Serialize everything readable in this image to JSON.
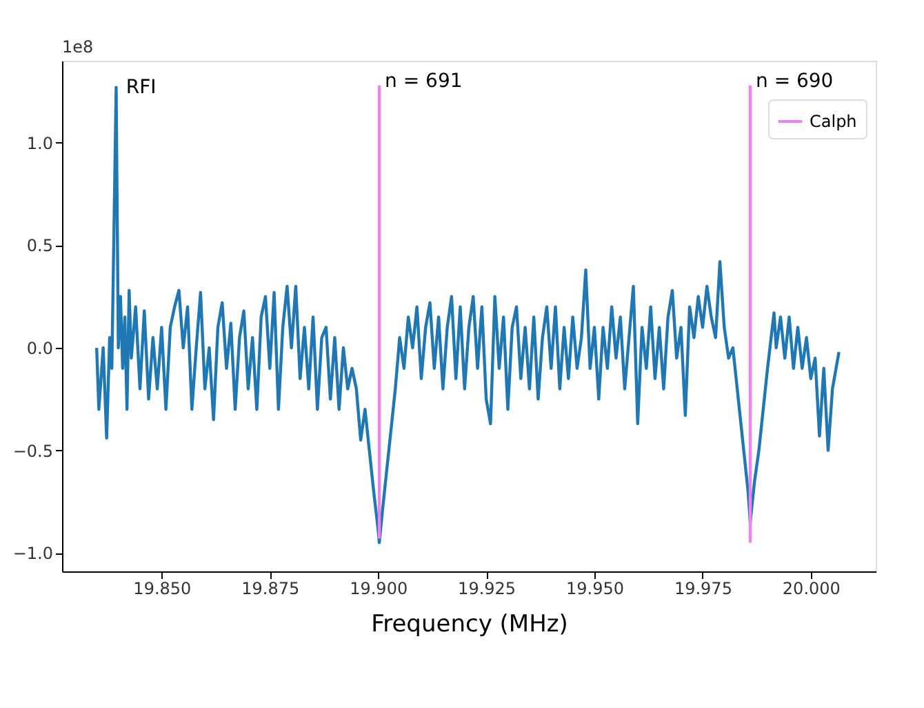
{
  "chart_data": {
    "type": "line",
    "xlabel": "Frequency (MHz)",
    "xlim": [
      19.827,
      20.015
    ],
    "xticks": [
      {
        "value": 19.85,
        "label": "19.850"
      },
      {
        "value": 19.875,
        "label": "19.875"
      },
      {
        "value": 19.9,
        "label": "19.900"
      },
      {
        "value": 19.925,
        "label": "19.925"
      },
      {
        "value": 19.95,
        "label": "19.950"
      },
      {
        "value": 19.975,
        "label": "19.975"
      },
      {
        "value": 20.0,
        "label": "20.000"
      }
    ],
    "ylim": [
      -1.09,
      1.4
    ],
    "yticks": [
      {
        "value": -1.0,
        "label": "−1.0"
      },
      {
        "value": -0.5,
        "label": "−0.5"
      },
      {
        "value": 0.0,
        "label": "0.0"
      },
      {
        "value": 0.5,
        "label": "0.5"
      },
      {
        "value": 1.0,
        "label": "1.0"
      }
    ],
    "grid": false,
    "legend": "top right",
    "line_style": "solid",
    "marker": "none",
    "annotations": [
      "1e8",
      {
        "text": "RFI",
        "x": 19.8405,
        "y": 1.27
      },
      {
        "text": "n = 691",
        "x": 19.9003,
        "y": 1.3
      },
      {
        "text": "n = 690",
        "x": 19.986,
        "y": 1.3
      }
    ],
    "series": [
      {
        "color": "#1f77b4",
        "x": [
          19.835,
          19.8355,
          19.8365,
          19.8373,
          19.838,
          19.8385,
          19.8395,
          19.84,
          19.8405,
          19.841,
          19.8415,
          19.842,
          19.8425,
          19.843,
          19.844,
          19.845,
          19.846,
          19.847,
          19.848,
          19.849,
          19.85,
          19.851,
          19.852,
          19.853,
          19.854,
          19.855,
          19.856,
          19.857,
          19.858,
          19.859,
          19.86,
          19.861,
          19.862,
          19.863,
          19.864,
          19.865,
          19.866,
          19.867,
          19.868,
          19.869,
          19.87,
          19.871,
          19.872,
          19.873,
          19.874,
          19.875,
          19.876,
          19.877,
          19.878,
          19.879,
          19.88,
          19.881,
          19.882,
          19.883,
          19.884,
          19.885,
          19.886,
          19.887,
          19.888,
          19.889,
          19.89,
          19.891,
          19.892,
          19.893,
          19.894,
          19.895,
          19.896,
          19.897,
          19.898,
          19.899,
          19.9,
          19.9003,
          19.901,
          19.902,
          19.903,
          19.904,
          19.905,
          19.906,
          19.907,
          19.908,
          19.909,
          19.91,
          19.911,
          19.912,
          19.913,
          19.914,
          19.915,
          19.916,
          19.917,
          19.918,
          19.919,
          19.92,
          19.921,
          19.922,
          19.923,
          19.924,
          19.925,
          19.926,
          19.927,
          19.928,
          19.929,
          19.93,
          19.931,
          19.932,
          19.933,
          19.934,
          19.935,
          19.936,
          19.937,
          19.938,
          19.939,
          19.94,
          19.941,
          19.942,
          19.943,
          19.944,
          19.945,
          19.946,
          19.947,
          19.948,
          19.949,
          19.95,
          19.951,
          19.952,
          19.953,
          19.954,
          19.955,
          19.956,
          19.957,
          19.958,
          19.959,
          19.96,
          19.961,
          19.962,
          19.963,
          19.964,
          19.965,
          19.966,
          19.967,
          19.968,
          19.969,
          19.97,
          19.971,
          19.972,
          19.973,
          19.974,
          19.975,
          19.976,
          19.977,
          19.978,
          19.979,
          19.98,
          19.981,
          19.982,
          19.983,
          19.984,
          19.985,
          19.9855,
          19.986,
          19.987,
          19.988,
          19.989,
          19.99,
          19.9915,
          19.992,
          19.993,
          19.994,
          19.995,
          19.996,
          19.997,
          19.998,
          19.999,
          20.0,
          20.001,
          20.002,
          20.003,
          20.004,
          20.005,
          20.0065
        ],
        "values": [
          0.0,
          -0.3,
          0.0,
          -0.44,
          0.05,
          -0.1,
          1.27,
          0.0,
          0.25,
          -0.1,
          0.15,
          -0.3,
          0.28,
          -0.05,
          0.2,
          -0.2,
          0.18,
          -0.25,
          0.05,
          -0.2,
          0.1,
          -0.3,
          0.1,
          0.2,
          0.28,
          0.0,
          0.2,
          -0.3,
          0.0,
          0.27,
          -0.2,
          0.0,
          -0.35,
          0.1,
          0.22,
          -0.1,
          0.12,
          -0.3,
          0.05,
          0.18,
          -0.2,
          0.05,
          -0.3,
          0.15,
          0.25,
          -0.1,
          0.27,
          -0.3,
          0.1,
          0.3,
          0.0,
          0.3,
          -0.15,
          0.1,
          -0.2,
          0.15,
          -0.3,
          0.05,
          0.1,
          -0.25,
          0.05,
          -0.3,
          0.0,
          -0.2,
          -0.1,
          -0.2,
          -0.45,
          -0.3,
          -0.5,
          -0.7,
          -0.88,
          -0.95,
          -0.8,
          -0.6,
          -0.4,
          -0.2,
          0.05,
          -0.1,
          0.15,
          0.0,
          0.2,
          -0.15,
          0.1,
          0.22,
          -0.1,
          0.15,
          -0.2,
          0.1,
          0.25,
          -0.15,
          0.2,
          -0.2,
          0.1,
          0.25,
          -0.1,
          0.2,
          -0.25,
          -0.37,
          0.25,
          -0.1,
          0.15,
          -0.3,
          0.1,
          0.2,
          -0.15,
          0.1,
          -0.2,
          0.15,
          -0.25,
          0.05,
          0.2,
          -0.1,
          0.2,
          -0.2,
          0.1,
          -0.15,
          0.15,
          -0.1,
          0.05,
          0.38,
          -0.1,
          0.1,
          -0.25,
          0.1,
          -0.1,
          0.2,
          -0.05,
          0.15,
          -0.2,
          0.05,
          0.3,
          -0.37,
          0.1,
          -0.1,
          0.2,
          -0.15,
          0.1,
          -0.2,
          0.15,
          0.28,
          -0.05,
          0.1,
          -0.33,
          0.2,
          0.05,
          0.25,
          0.1,
          0.3,
          0.15,
          0.05,
          0.42,
          0.1,
          -0.05,
          0.0,
          -0.2,
          -0.4,
          -0.6,
          -0.7,
          -0.85,
          -0.65,
          -0.5,
          -0.3,
          -0.1,
          0.17,
          0.0,
          0.15,
          -0.05,
          0.15,
          -0.1,
          0.1,
          -0.1,
          0.05,
          -0.15,
          -0.05,
          -0.43,
          -0.1,
          -0.5,
          -0.2,
          -0.02
        ]
      },
      {
        "name": "Calph",
        "color": "#ee82ee",
        "x": [
          19.9003,
          19.9003,
          null,
          19.986,
          19.986
        ],
        "values": [
          1.28,
          -0.93,
          null,
          1.28,
          -0.95
        ]
      }
    ]
  }
}
